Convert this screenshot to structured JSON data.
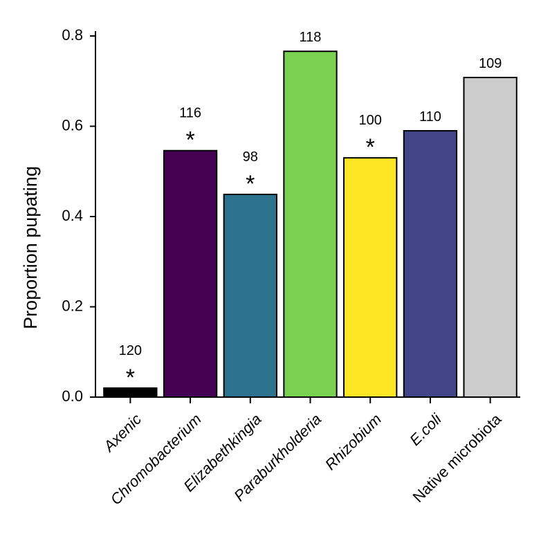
{
  "chart_data": {
    "type": "bar",
    "y_label": "Proportion pupating",
    "categories": [
      "Axenic",
      "Chromobacterium",
      "Elizabethkingia",
      "Paraburkholderia",
      "Rhizobium",
      "E.coli",
      "Native microbiota"
    ],
    "italic_categories": [
      true,
      true,
      true,
      true,
      true,
      true,
      false
    ],
    "values": [
      0.02,
      0.546,
      0.449,
      0.766,
      0.53,
      0.59,
      0.708
    ],
    "colors": [
      "#000000",
      "#440154",
      "#2c728e",
      "#7ad151",
      "#fde725",
      "#414487",
      "#cccccc"
    ],
    "sample_sizes": [
      120,
      116,
      98,
      118,
      100,
      110,
      109
    ],
    "significance": [
      "*",
      "*",
      "*",
      null,
      "*",
      null,
      null
    ],
    "ylim": [
      0,
      0.8
    ],
    "yticks": [
      {
        "value": 0,
        "label": "0.0"
      },
      {
        "value": 0.2,
        "label": "0.2"
      },
      {
        "value": 0.4,
        "label": "0.4"
      },
      {
        "value": 0.6,
        "label": "0.6"
      },
      {
        "value": 0.8,
        "label": "0.8"
      }
    ],
    "grid": false
  }
}
